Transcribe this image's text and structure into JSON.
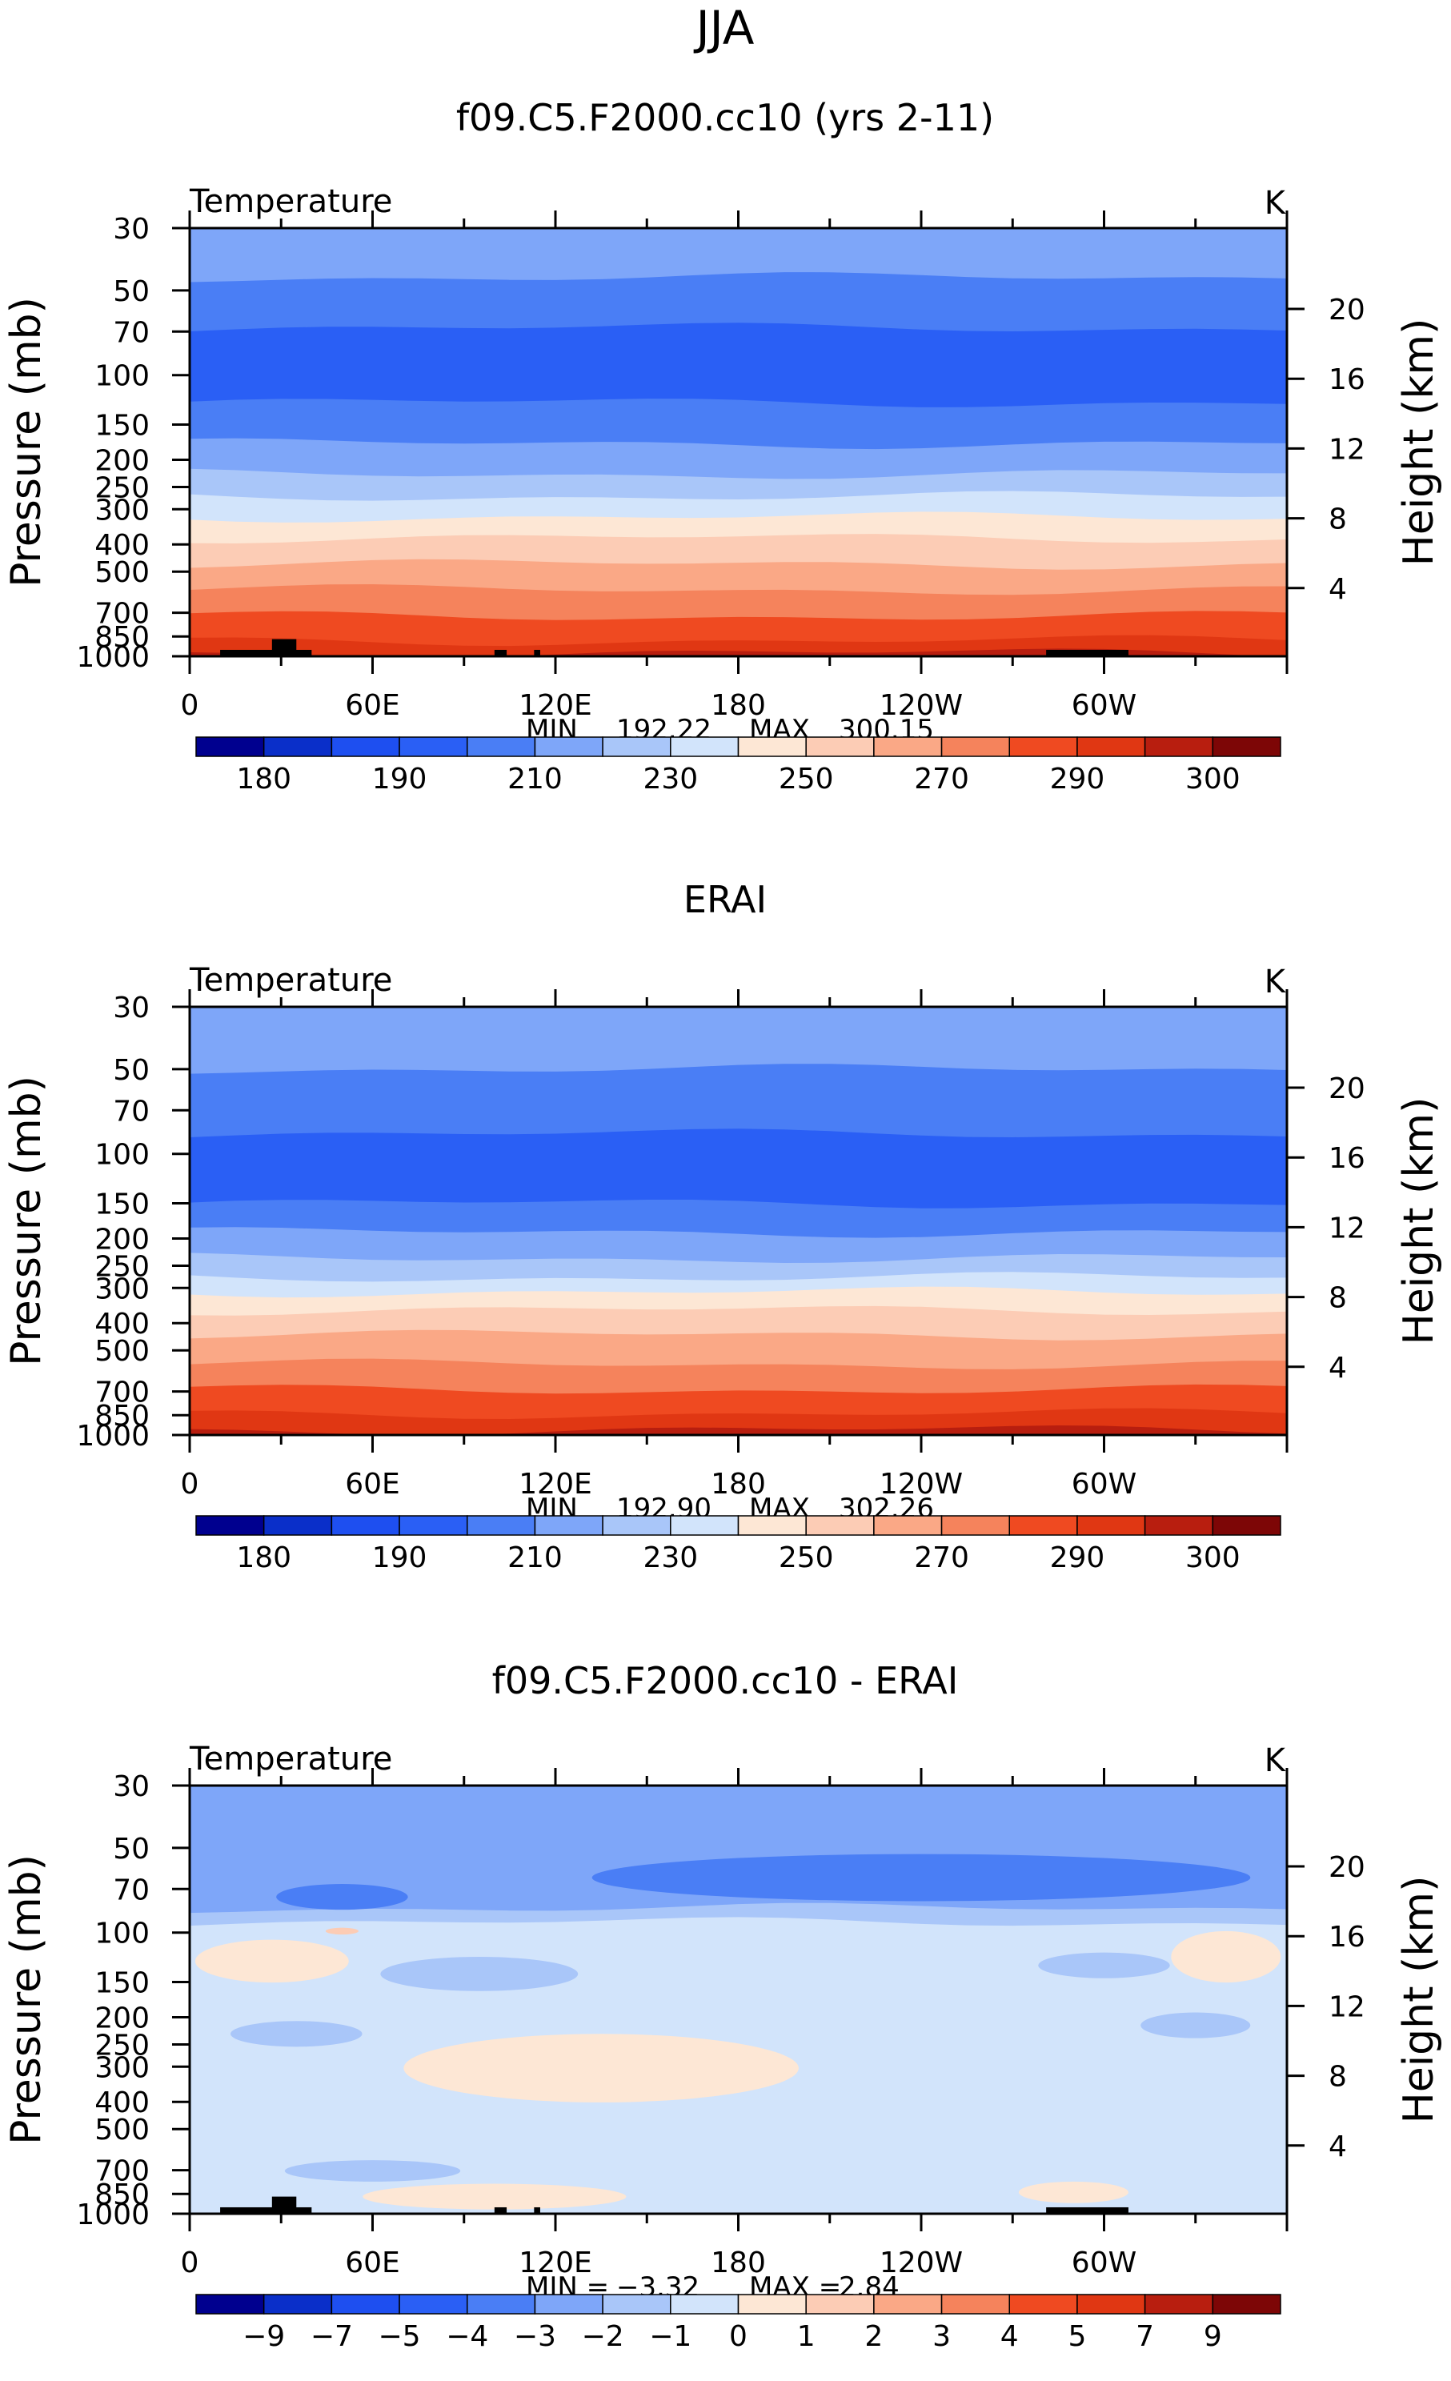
{
  "page_title": "JJA",
  "colors": {
    "seq": [
      "#00008f",
      "#0a2fc9",
      "#1e4ff0",
      "#2a5ff5",
      "#4a7ef5",
      "#7ea6f9",
      "#a9c6f9",
      "#d2e4fb",
      "#fde7d5",
      "#fcccb5",
      "#faa886",
      "#f5835c",
      "#ef4a21",
      "#e03713",
      "#b81e0f",
      "#7d0606"
    ],
    "diff": [
      "#00008f",
      "#0a2fc9",
      "#1e4ff0",
      "#2a5ff5",
      "#4a7ef5",
      "#7ea6f9",
      "#a9c6f9",
      "#d2e4fb",
      "#fde7d5",
      "#fcccb5",
      "#faa886",
      "#f5835c",
      "#ef4a21",
      "#e03713",
      "#b81e0f",
      "#7d0606"
    ],
    "terrain": "#000000"
  },
  "chart_data": [
    {
      "type": "contour",
      "title": "f09.C5.F2000.cc10 (yrs 2-11)",
      "variable": "Temperature",
      "units": "K",
      "ylabel": "Pressure (mb)",
      "y2label": "Height (km)",
      "pressure_ticks": [
        "30",
        "50",
        "70",
        "100",
        "150",
        "200",
        "250",
        "300",
        "400",
        "500",
        "700",
        "850",
        "1000"
      ],
      "height_ticks": [
        "20",
        "16",
        "12",
        "8",
        "4"
      ],
      "x_ticks": [
        "0",
        "60E",
        "120E",
        "180",
        "120W",
        "60W"
      ],
      "min_label": "MIN",
      "min_value": "192.22",
      "max_label": "MAX",
      "max_value": "300.15",
      "colorbar": {
        "scheme": "seq",
        "labels": [
          "180",
          "190",
          "210",
          "230",
          "250",
          "270",
          "290",
          "300"
        ]
      },
      "bands": [
        {
          "p": 30,
          "c": 5
        },
        {
          "p": 45,
          "c": 4
        },
        {
          "p": 68,
          "c": 3
        },
        {
          "p": 125,
          "c": 4
        },
        {
          "p": 175,
          "c": 5
        },
        {
          "p": 225,
          "c": 6
        },
        {
          "p": 270,
          "c": 7
        },
        {
          "p": 320,
          "c": 8
        },
        {
          "p": 380,
          "c": 9
        },
        {
          "p": 470,
          "c": 10
        },
        {
          "p": 580,
          "c": 11
        },
        {
          "p": 720,
          "c": 12
        },
        {
          "p": 880,
          "c": 13
        },
        {
          "p": 975,
          "c": 14
        }
      ]
    },
    {
      "type": "contour",
      "title": "ERAI",
      "variable": "Temperature",
      "units": "K",
      "ylabel": "Pressure (mb)",
      "y2label": "Height (km)",
      "pressure_ticks": [
        "30",
        "50",
        "70",
        "100",
        "150",
        "200",
        "250",
        "300",
        "400",
        "500",
        "700",
        "850",
        "1000"
      ],
      "height_ticks": [
        "20",
        "16",
        "12",
        "8",
        "4"
      ],
      "x_ticks": [
        "0",
        "60E",
        "120E",
        "180",
        "120W",
        "60W"
      ],
      "min_label": "MIN",
      "min_value": "192.90",
      "max_label": "MAX",
      "max_value": "302.26",
      "colorbar": {
        "scheme": "seq",
        "labels": [
          "180",
          "190",
          "210",
          "230",
          "250",
          "270",
          "290",
          "300"
        ]
      },
      "bands": [
        {
          "p": 30,
          "c": 5
        },
        {
          "p": 50,
          "c": 4
        },
        {
          "p": 85,
          "c": 3
        },
        {
          "p": 150,
          "c": 4
        },
        {
          "p": 190,
          "c": 5
        },
        {
          "p": 235,
          "c": 6
        },
        {
          "p": 275,
          "c": 7
        },
        {
          "p": 310,
          "c": 8
        },
        {
          "p": 360,
          "c": 9
        },
        {
          "p": 440,
          "c": 10
        },
        {
          "p": 560,
          "c": 11
        },
        {
          "p": 690,
          "c": 12
        },
        {
          "p": 840,
          "c": 13
        },
        {
          "p": 960,
          "c": 14
        }
      ]
    },
    {
      "type": "contour",
      "title": "f09.C5.F2000.cc10 - ERAI",
      "variable": "Temperature",
      "units": "K",
      "ylabel": "Pressure (mb)",
      "y2label": "Height (km)",
      "pressure_ticks": [
        "30",
        "50",
        "70",
        "100",
        "150",
        "200",
        "250",
        "300",
        "400",
        "500",
        "700",
        "850",
        "1000"
      ],
      "height_ticks": [
        "20",
        "16",
        "12",
        "8",
        "4"
      ],
      "x_ticks": [
        "0",
        "60E",
        "120E",
        "180",
        "120W",
        "60W"
      ],
      "min_label": "MIN =",
      "min_value": "−3.32",
      "max_label": "MAX =",
      "max_value": "2.84",
      "colorbar": {
        "scheme": "diff",
        "labels": [
          "−9",
          "−7",
          "−5",
          "−4",
          "−3",
          "−2",
          "−1",
          "0",
          "1",
          "2",
          "3",
          "4",
          "5",
          "7",
          "9"
        ]
      },
      "bands": [
        {
          "p": 30,
          "c": 5
        },
        {
          "p": 82,
          "c": 6
        },
        {
          "p": 92,
          "c": 7
        }
      ]
    }
  ]
}
